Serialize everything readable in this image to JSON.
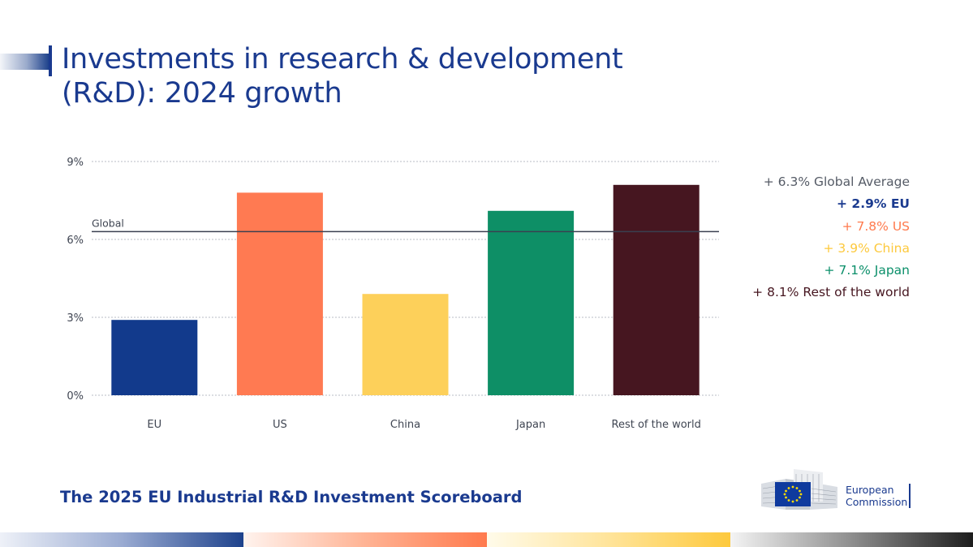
{
  "slide": {
    "title_line1": "Investments in research & development",
    "title_line2": "(R&D): 2024 growth",
    "footer": "The 2025 EU Industrial R&D Investment Scoreboard"
  },
  "logo": {
    "line1": "European",
    "line2": "Commission"
  },
  "legend": [
    {
      "text": "+ 6.3% Global Average",
      "color": "#555b66",
      "bold": false
    },
    {
      "text": "+ 2.9% EU",
      "color": "#1a3a8f",
      "bold": true
    },
    {
      "text": "+ 7.8% US",
      "color": "#ff7a4d",
      "bold": false
    },
    {
      "text": "+ 3.9% China",
      "color": "#fdc93d",
      "bold": false
    },
    {
      "text": "+ 7.1% Japan",
      "color": "#0b8f6a",
      "bold": false
    },
    {
      "text": "+ 8.1% Rest of the world",
      "color": "#461620",
      "bold": false
    }
  ],
  "chart_data": {
    "type": "bar",
    "title": "Investments in research & development (R&D): 2024 growth",
    "categories": [
      "EU",
      "US",
      "China",
      "Japan",
      "Rest of the world"
    ],
    "values": [
      2.9,
      7.8,
      3.9,
      7.1,
      8.1
    ],
    "colors": [
      "#123a8c",
      "#ff7a52",
      "#fdd05a",
      "#0e8f66",
      "#461620"
    ],
    "yticks": [
      "0%",
      "3%",
      "6%",
      "9%"
    ],
    "ytick_values": [
      0,
      3,
      6,
      9
    ],
    "ylim": [
      0,
      9
    ],
    "reference_line": {
      "label": "Global",
      "value": 6.3
    },
    "grid": true
  }
}
